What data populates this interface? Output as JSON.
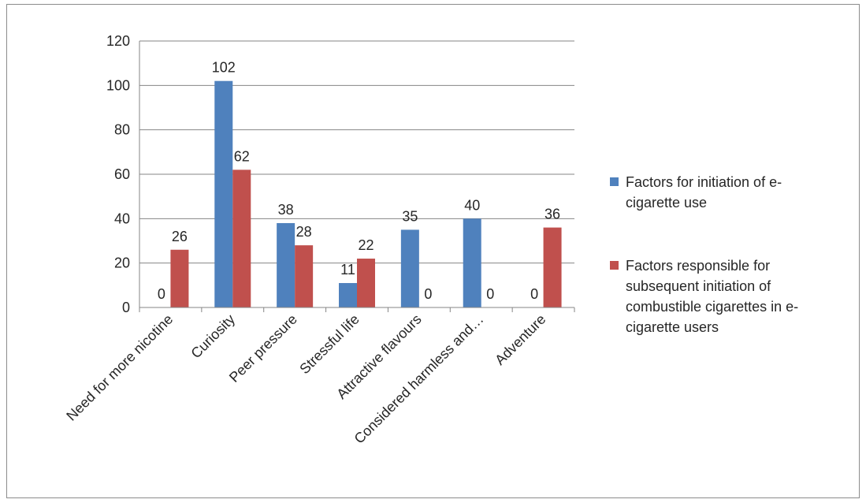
{
  "chart_data": {
    "type": "bar",
    "categories": [
      "Need for more nicotine",
      "Curiosity",
      "Peer pressure",
      "Stressful life",
      "Attractive flavours",
      "Considered harmless and…",
      "Adventure"
    ],
    "series": [
      {
        "name": "Factors for initiation of e-cigarette use",
        "values": [
          0,
          102,
          38,
          11,
          35,
          40,
          0
        ],
        "color": "#4f81bd"
      },
      {
        "name": "Factors responsible for subsequent initiation of combustible cigarettes in e-cigarette users",
        "values": [
          26,
          62,
          28,
          22,
          0,
          0,
          36
        ],
        "color": "#c0504d"
      }
    ],
    "yticks": [
      0,
      20,
      40,
      60,
      80,
      100,
      120
    ],
    "ylim": [
      0,
      120
    ],
    "grid": true,
    "legend_position": "right",
    "data_labels": true
  },
  "legend": {
    "items": [
      {
        "lines": [
          "Factors for initiation of e-",
          "cigarette use"
        ],
        "color": "#4f81bd"
      },
      {
        "lines": [
          "Factors responsible for",
          "subsequent initiation of",
          "combustible cigarettes in e-",
          "cigarette users"
        ],
        "color": "#c0504d"
      }
    ]
  }
}
